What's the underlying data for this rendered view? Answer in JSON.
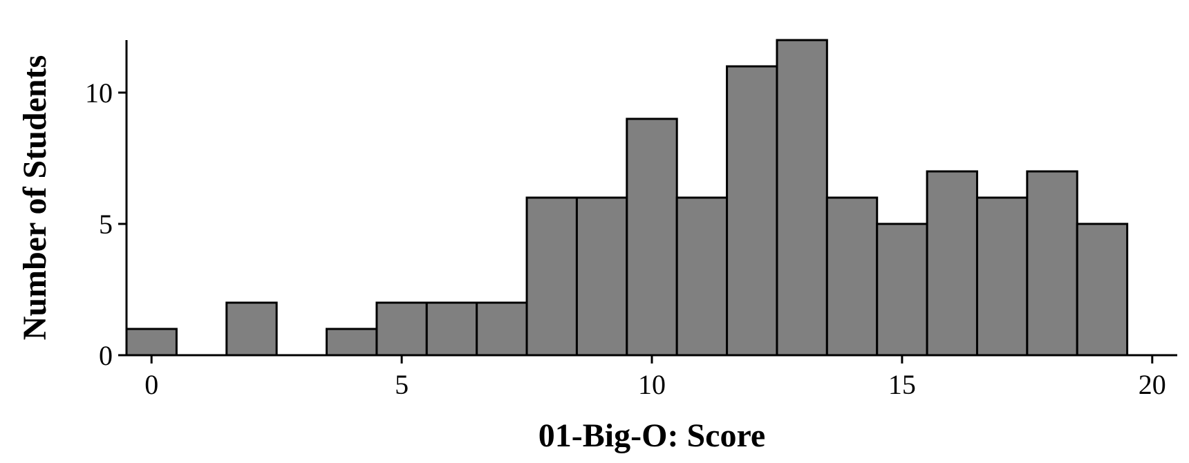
{
  "chart_data": {
    "type": "histogram",
    "xlabel": "01-Big-O: Score",
    "ylabel": "Number of Students",
    "bins": [
      -0.5,
      0.5,
      1.5,
      2.5,
      3.5,
      4.5,
      5.5,
      6.5,
      7.5,
      8.5,
      9.5,
      10.5,
      11.5,
      12.5,
      13.5,
      14.5,
      15.5,
      16.5,
      17.5,
      18.5,
      19.5
    ],
    "values": [
      1,
      0,
      2,
      0,
      1,
      2,
      2,
      2,
      6,
      6,
      9,
      6,
      11,
      12,
      6,
      5,
      7,
      6,
      7,
      5
    ],
    "color": "#808080",
    "xlim": [
      -0.5,
      20.5
    ],
    "ylim": [
      0,
      12
    ],
    "xticks": [
      0,
      5,
      10,
      15,
      20
    ],
    "yticks": [
      0,
      5,
      10
    ]
  }
}
